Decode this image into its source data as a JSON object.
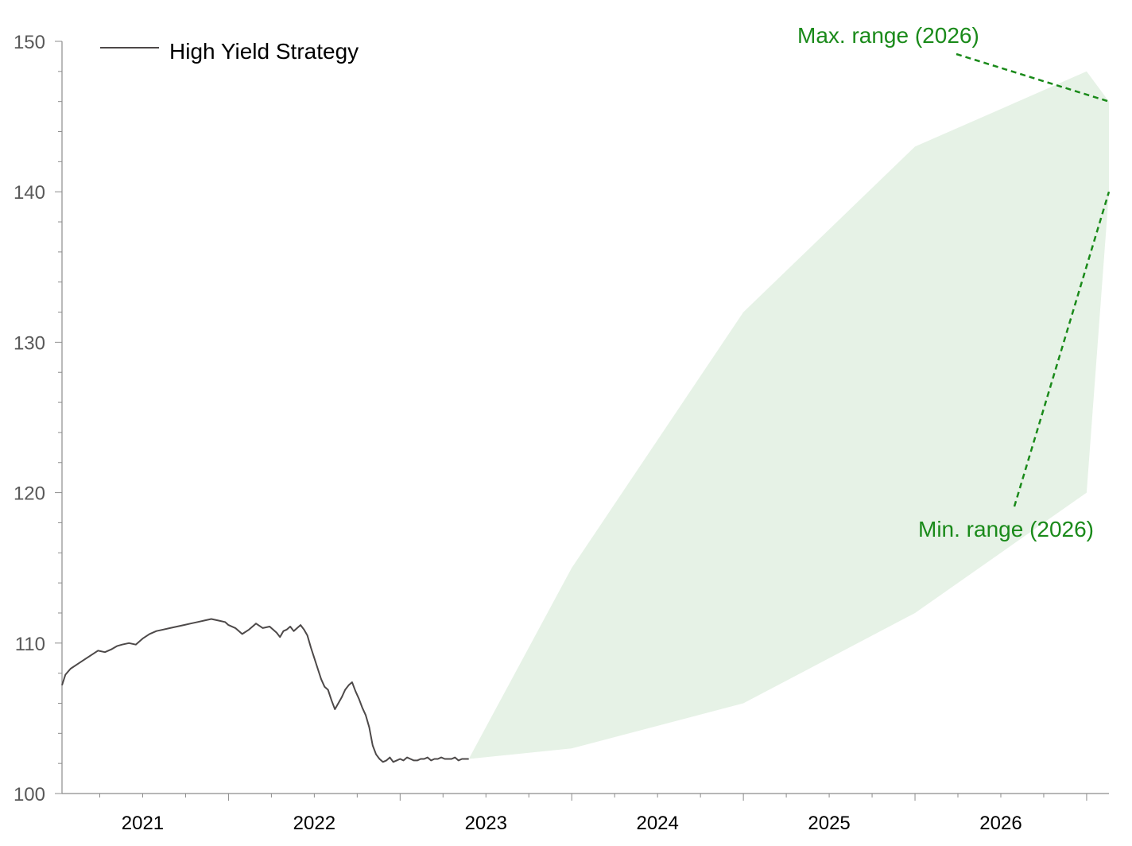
{
  "chart_data": {
    "type": "area",
    "title": "",
    "xlabel": "",
    "ylabel": "",
    "ylim": [
      100,
      150
    ],
    "xlim": [
      2020.53,
      2026.63
    ],
    "yticks": [
      100,
      110,
      120,
      130,
      140,
      150
    ],
    "y_tick_labels": [
      "100",
      "110",
      "120",
      "130",
      "140",
      "150"
    ],
    "x_year_labels": [
      {
        "label": "2021",
        "x": 2021.0
      },
      {
        "label": "2022",
        "x": 2022.0
      },
      {
        "label": "2023",
        "x": 2023.0
      },
      {
        "label": "2024",
        "x": 2024.0
      },
      {
        "label": "2025",
        "x": 2025.0
      },
      {
        "label": "2026",
        "x": 2026.0
      }
    ],
    "colors": {
      "line": "#4d4949",
      "band": "#e6f2e6",
      "annotation": "#1a8a1a",
      "axis": "#8c8c8c"
    },
    "legend": {
      "position": "top-left",
      "entries": [
        "High Yield Strategy"
      ]
    },
    "series": [
      {
        "name": "High Yield Strategy",
        "type": "line",
        "x": [
          2020.53,
          2020.55,
          2020.58,
          2020.62,
          2020.66,
          2020.7,
          2020.74,
          2020.78,
          2020.82,
          2020.85,
          2020.88,
          2020.92,
          2020.96,
          2021.0,
          2021.04,
          2021.08,
          2021.12,
          2021.16,
          2021.2,
          2021.24,
          2021.28,
          2021.32,
          2021.36,
          2021.4,
          2021.44,
          2021.48,
          2021.5,
          2021.54,
          2021.58,
          2021.62,
          2021.66,
          2021.7,
          2021.74,
          2021.78,
          2021.8,
          2021.82,
          2021.84,
          2021.86,
          2021.88,
          2021.9,
          2021.92,
          2021.94,
          2021.96,
          2021.98,
          2022.0,
          2022.02,
          2022.04,
          2022.06,
          2022.08,
          2022.1,
          2022.12,
          2022.14,
          2022.16,
          2022.18,
          2022.2,
          2022.22,
          2022.24,
          2022.26,
          2022.28,
          2022.3,
          2022.32,
          2022.34,
          2022.36,
          2022.38,
          2022.4,
          2022.42,
          2022.44,
          2022.46,
          2022.48,
          2022.5,
          2022.52,
          2022.54,
          2022.56,
          2022.58,
          2022.6,
          2022.62,
          2022.64,
          2022.66,
          2022.68,
          2022.7,
          2022.72,
          2022.74,
          2022.76,
          2022.78,
          2022.8,
          2022.82,
          2022.84,
          2022.86,
          2022.88,
          2022.9
        ],
        "values": [
          107.2,
          107.9,
          108.3,
          108.6,
          108.9,
          109.2,
          109.5,
          109.4,
          109.6,
          109.8,
          109.9,
          110.0,
          109.9,
          110.3,
          110.6,
          110.8,
          110.9,
          111.0,
          111.1,
          111.2,
          111.3,
          111.4,
          111.5,
          111.6,
          111.5,
          111.4,
          111.2,
          111.0,
          110.6,
          110.9,
          111.3,
          111.0,
          111.1,
          110.7,
          110.4,
          110.8,
          110.9,
          111.1,
          110.8,
          111.0,
          111.2,
          110.9,
          110.5,
          109.7,
          109.0,
          108.3,
          107.6,
          107.1,
          106.9,
          106.2,
          105.6,
          106.0,
          106.4,
          106.9,
          107.2,
          107.4,
          106.8,
          106.3,
          105.7,
          105.2,
          104.4,
          103.2,
          102.6,
          102.3,
          102.1,
          102.2,
          102.4,
          102.1,
          102.2,
          102.3,
          102.2,
          102.4,
          102.3,
          102.2,
          102.2,
          102.3,
          102.3,
          102.4,
          102.2,
          102.3,
          102.3,
          102.4,
          102.3,
          102.3,
          102.3,
          102.4,
          102.2,
          102.3,
          102.3,
          102.3
        ]
      },
      {
        "name": "Max. range",
        "type": "band_upper",
        "x": [
          2022.9,
          2023.5,
          2024.5,
          2025.5,
          2026.5,
          2026.63
        ],
        "values": [
          102.3,
          115.0,
          132.0,
          143.0,
          148.0,
          146.0
        ]
      },
      {
        "name": "Min. range",
        "type": "band_lower",
        "x": [
          2022.9,
          2023.5,
          2024.5,
          2025.5,
          2026.5,
          2026.63
        ],
        "values": [
          102.3,
          103.0,
          106.0,
          112.0,
          120.0,
          140.0
        ]
      }
    ],
    "annotations": [
      {
        "text": "Max. range (2026)",
        "points_to": {
          "x": 2026.63,
          "y": 146.0
        }
      },
      {
        "text": "Min. range (2026)",
        "points_to": {
          "x": 2026.63,
          "y": 140.0
        }
      }
    ]
  }
}
